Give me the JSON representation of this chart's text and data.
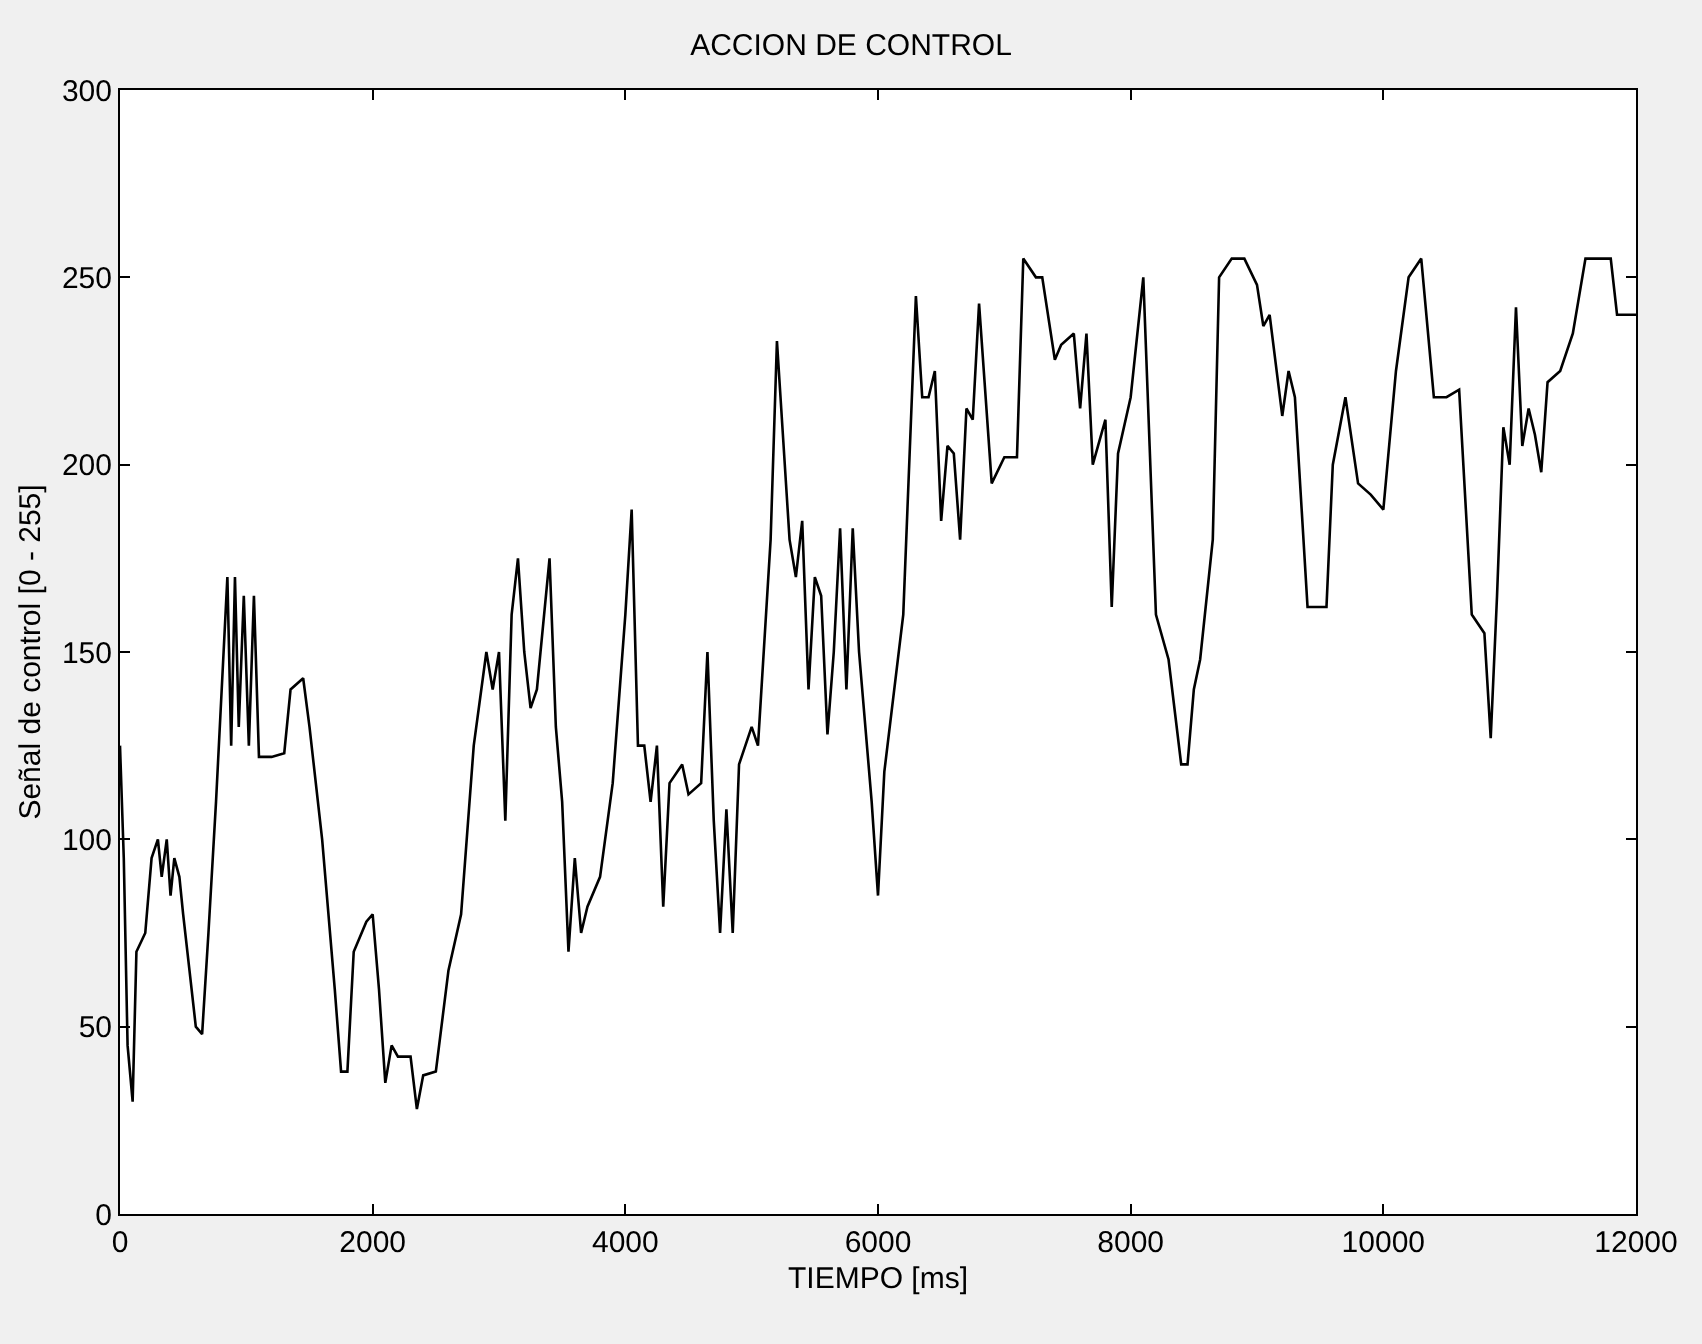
{
  "chart_data": {
    "type": "line",
    "title": "ACCION DE CONTROL",
    "xlabel": "TIEMPO [ms]",
    "ylabel": "Señal de control [0 - 255]",
    "x": [
      0,
      30,
      60,
      100,
      130,
      200,
      250,
      300,
      330,
      370,
      400,
      430,
      470,
      500,
      550,
      600,
      650,
      700,
      760,
      820,
      850,
      880,
      910,
      940,
      980,
      1020,
      1060,
      1100,
      1200,
      1300,
      1350,
      1450,
      1500,
      1600,
      1700,
      1750,
      1800,
      1850,
      1950,
      2000,
      2050,
      2100,
      2150,
      2200,
      2300,
      2350,
      2400,
      2500,
      2600,
      2700,
      2800,
      2900,
      2950,
      3000,
      3050,
      3100,
      3150,
      3200,
      3250,
      3300,
      3400,
      3450,
      3500,
      3550,
      3600,
      3650,
      3700,
      3800,
      3900,
      4000,
      4050,
      4100,
      4150,
      4200,
      4250,
      4300,
      4350,
      4450,
      4500,
      4600,
      4650,
      4700,
      4750,
      4800,
      4850,
      4900,
      5000,
      5050,
      5150,
      5200,
      5300,
      5350,
      5400,
      5450,
      5500,
      5550,
      5600,
      5650,
      5700,
      5750,
      5800,
      5850,
      5950,
      6000,
      6050,
      6200,
      6300,
      6350,
      6400,
      6450,
      6500,
      6550,
      6600,
      6650,
      6700,
      6750,
      6800,
      6900,
      7000,
      7100,
      7150,
      7250,
      7300,
      7400,
      7450,
      7550,
      7600,
      7650,
      7700,
      7800,
      7850,
      7900,
      8000,
      8100,
      8150,
      8200,
      8300,
      8400,
      8450,
      8500,
      8550,
      8650,
      8700,
      8800,
      8900,
      9000,
      9050,
      9100,
      9200,
      9250,
      9300,
      9400,
      9550,
      9600,
      9700,
      9800,
      9900,
      10000,
      10100,
      10200,
      10300,
      10400,
      10500,
      10600,
      10700,
      10800,
      10850,
      10900,
      10950,
      11000,
      11050,
      11100,
      11150,
      11200,
      11250,
      11300,
      11400,
      11500,
      11600,
      11800,
      11850,
      11900,
      12000
    ],
    "series": [
      {
        "color": "#000000",
        "values": [
          125,
          95,
          45,
          30,
          70,
          75,
          95,
          100,
          90,
          100,
          85,
          95,
          90,
          80,
          65,
          50,
          48,
          75,
          110,
          150,
          170,
          125,
          170,
          130,
          165,
          125,
          165,
          122,
          122,
          123,
          140,
          143,
          130,
          100,
          60,
          38,
          38,
          70,
          78,
          80,
          60,
          35,
          45,
          42,
          42,
          28,
          37,
          38,
          65,
          80,
          125,
          150,
          140,
          150,
          105,
          160,
          175,
          150,
          135,
          140,
          175,
          130,
          110,
          70,
          95,
          75,
          82,
          90,
          115,
          160,
          188,
          125,
          125,
          110,
          125,
          82,
          115,
          120,
          112,
          115,
          150,
          105,
          75,
          108,
          75,
          120,
          130,
          125,
          180,
          233,
          180,
          170,
          185,
          140,
          170,
          165,
          128,
          150,
          183,
          140,
          183,
          150,
          110,
          85,
          118,
          160,
          245,
          218,
          218,
          225,
          185,
          205,
          203,
          180,
          215,
          212,
          243,
          195,
          202,
          202,
          255,
          250,
          250,
          228,
          232,
          235,
          215,
          235,
          200,
          212,
          162,
          203,
          218,
          250,
          205,
          160,
          148,
          120,
          120,
          140,
          148,
          180,
          250,
          255,
          255,
          248,
          237,
          240,
          213,
          225,
          218,
          162,
          162,
          200,
          218,
          195,
          192,
          188,
          225,
          250,
          255,
          218,
          218,
          220,
          160,
          155,
          127,
          165,
          210,
          200,
          242,
          205,
          215,
          208,
          198,
          222,
          225,
          235,
          255,
          255,
          240,
          240,
          240
        ]
      }
    ],
    "xlim": [
      0,
      12000
    ],
    "xticks": [
      0,
      2000,
      4000,
      6000,
      8000,
      10000,
      12000
    ],
    "ylim": [
      0,
      300
    ],
    "yticks": [
      0,
      50,
      100,
      150,
      200,
      250,
      300
    ],
    "marker": "none",
    "line_style": "solid"
  }
}
